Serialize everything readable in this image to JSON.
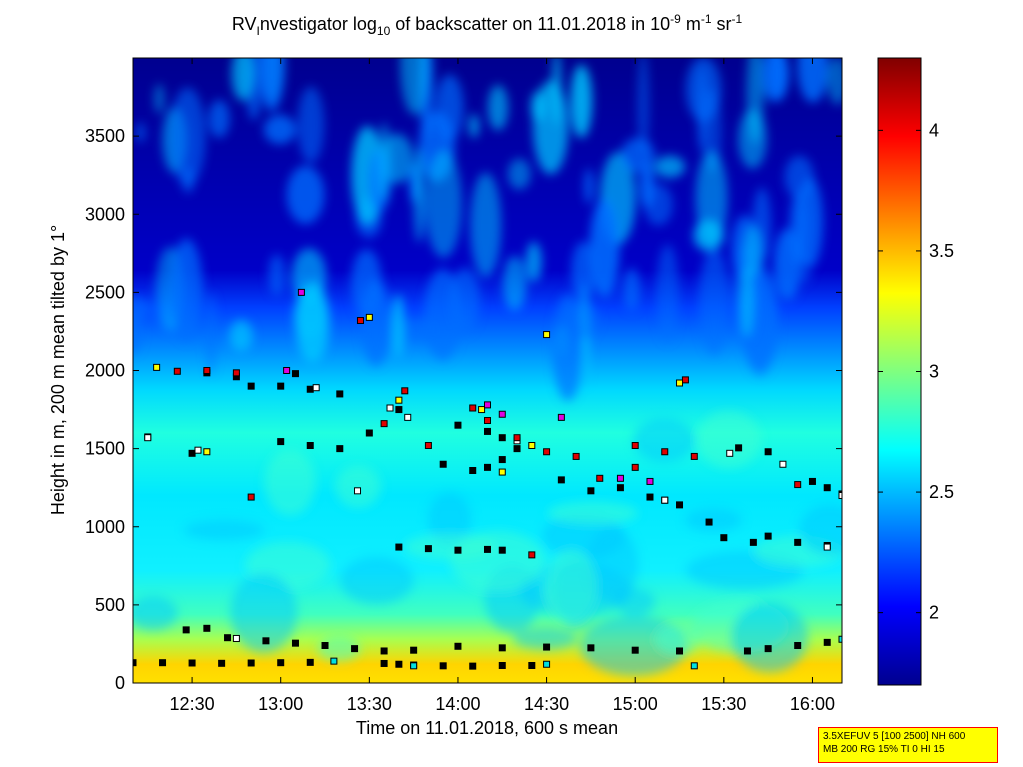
{
  "figure": {
    "title_parts": [
      "RV",
      "I",
      "nvestigator log",
      "10",
      " of backscatter on 11.01.2018 in 10",
      "-9",
      " m",
      "-1",
      " sr",
      "-1"
    ],
    "xlabel": "Time on 11.01.2018, 600 s mean",
    "ylabel": "Height in m, 200 m mean tilted by 1°",
    "info_lines": [
      "3.5XEFUV 5 [100 2500] NH 600",
      "MB 200 RG 15% TI 0 HI 15"
    ]
  },
  "colors": {
    "marker_edge": "#000000",
    "marker_black": "#000000",
    "marker_white": "#ffffff",
    "marker_red": "#e00000",
    "marker_yellow": "#ffff00",
    "marker_magenta": "#e000e0",
    "marker_cyan": "#00e0e0",
    "info_bg": "#ffff00",
    "info_border": "#ff0000"
  },
  "chart_data": {
    "type": "heatmap",
    "colormap": "jet",
    "xlim": [
      "12:10",
      "16:10"
    ],
    "ylim": [
      0,
      4000
    ],
    "clim": [
      1.7,
      4.3
    ],
    "x_ticks": [
      "12:30",
      "13:00",
      "13:30",
      "14:00",
      "14:30",
      "15:00",
      "15:30",
      "16:00"
    ],
    "y_ticks": [
      0,
      500,
      1000,
      1500,
      2000,
      2500,
      3000,
      3500
    ],
    "colorbar_ticks": [
      2,
      2.5,
      3,
      3.5,
      4
    ],
    "field_description_levels": {
      "surface_0_100m": 3.3,
      "near_surface_100_400m": 3.0,
      "boundary_layer_400_1500m": 2.7,
      "free_troposphere_above_2000m": 1.8
    },
    "series": [
      {
        "marker": "black",
        "points": [
          [
            "12:10",
            130
          ],
          [
            "12:20",
            130
          ],
          [
            "12:30",
            128
          ],
          [
            "12:40",
            126
          ],
          [
            "12:50",
            128
          ],
          [
            "13:00",
            130
          ],
          [
            "13:10",
            132
          ],
          [
            "13:35",
            125
          ],
          [
            "13:40",
            120
          ],
          [
            "13:45",
            115
          ],
          [
            "13:55",
            110
          ],
          [
            "14:05",
            108
          ],
          [
            "14:15",
            112
          ],
          [
            "14:25",
            112
          ],
          [
            "12:28",
            340
          ],
          [
            "12:35",
            350
          ],
          [
            "12:42",
            290
          ],
          [
            "12:55",
            270
          ],
          [
            "13:05",
            255
          ],
          [
            "13:15",
            240
          ],
          [
            "13:25",
            220
          ],
          [
            "13:35",
            205
          ],
          [
            "13:45",
            210
          ],
          [
            "14:00",
            235
          ],
          [
            "14:15",
            225
          ],
          [
            "14:30",
            230
          ],
          [
            "14:45",
            225
          ],
          [
            "15:00",
            210
          ],
          [
            "15:15",
            205
          ],
          [
            "15:38",
            205
          ],
          [
            "15:45",
            220
          ],
          [
            "15:55",
            240
          ],
          [
            "16:05",
            260
          ],
          [
            "13:40",
            870
          ],
          [
            "13:50",
            860
          ],
          [
            "14:00",
            850
          ],
          [
            "14:10",
            855
          ],
          [
            "14:15",
            850
          ],
          [
            "13:00",
            1545
          ],
          [
            "13:10",
            1520
          ],
          [
            "13:20",
            1500
          ],
          [
            "13:30",
            1600
          ],
          [
            "13:40",
            1750
          ],
          [
            "13:00",
            1900
          ],
          [
            "13:10",
            1880
          ],
          [
            "13:20",
            1850
          ],
          [
            "14:00",
            1650
          ],
          [
            "14:10",
            1610
          ],
          [
            "14:15",
            1570
          ],
          [
            "14:20",
            1500
          ],
          [
            "13:55",
            1400
          ],
          [
            "14:05",
            1360
          ],
          [
            "14:10",
            1380
          ],
          [
            "14:15",
            1430
          ],
          [
            "14:35",
            1300
          ],
          [
            "14:45",
            1230
          ],
          [
            "14:55",
            1250
          ],
          [
            "15:05",
            1190
          ],
          [
            "15:10",
            1170
          ],
          [
            "15:15",
            1140
          ],
          [
            "15:25",
            1030
          ],
          [
            "15:30",
            930
          ],
          [
            "15:40",
            900
          ],
          [
            "15:45",
            940
          ],
          [
            "15:55",
            900
          ],
          [
            "16:05",
            880
          ],
          [
            "15:35",
            1505
          ],
          [
            "15:45",
            1480
          ],
          [
            "16:00",
            1290
          ],
          [
            "16:05",
            1250
          ],
          [
            "16:10",
            1210
          ],
          [
            "12:30",
            1470
          ],
          [
            "12:15",
            1575
          ],
          [
            "12:35",
            1985
          ],
          [
            "12:45",
            1960
          ],
          [
            "12:50",
            1900
          ],
          [
            "13:05",
            1980
          ]
        ]
      },
      {
        "marker": "white",
        "points": [
          [
            "12:15",
            1570
          ],
          [
            "12:32",
            1490
          ],
          [
            "13:12",
            1890
          ],
          [
            "13:26",
            1230
          ],
          [
            "13:37",
            1760
          ],
          [
            "13:43",
            1700
          ],
          [
            "14:20",
            1550
          ],
          [
            "15:10",
            1170
          ],
          [
            "15:32",
            1470
          ],
          [
            "15:50",
            1400
          ],
          [
            "16:10",
            1200
          ],
          [
            "16:05",
            870
          ],
          [
            "12:45",
            285
          ]
        ]
      },
      {
        "marker": "red",
        "points": [
          [
            "12:25",
            1995
          ],
          [
            "12:35",
            2000
          ],
          [
            "12:45",
            1985
          ],
          [
            "12:50",
            1190
          ],
          [
            "13:27",
            2320
          ],
          [
            "13:35",
            1660
          ],
          [
            "13:42",
            1870
          ],
          [
            "13:50",
            1520
          ],
          [
            "14:05",
            1760
          ],
          [
            "14:10",
            1680
          ],
          [
            "14:20",
            1570
          ],
          [
            "14:25",
            820
          ],
          [
            "14:30",
            1480
          ],
          [
            "14:40",
            1450
          ],
          [
            "14:48",
            1310
          ],
          [
            "15:00",
            1380
          ],
          [
            "15:00",
            1520
          ],
          [
            "15:10",
            1480
          ],
          [
            "15:17",
            1940
          ],
          [
            "15:20",
            1450
          ],
          [
            "15:55",
            1270
          ]
        ]
      },
      {
        "marker": "yellow",
        "points": [
          [
            "12:18",
            2020
          ],
          [
            "12:35",
            1480
          ],
          [
            "13:30",
            2340
          ],
          [
            "13:40",
            1810
          ],
          [
            "14:08",
            1750
          ],
          [
            "14:15",
            1350
          ],
          [
            "14:25",
            1520
          ],
          [
            "14:30",
            2230
          ],
          [
            "15:15",
            1920
          ]
        ]
      },
      {
        "marker": "magenta",
        "points": [
          [
            "13:07",
            2500
          ],
          [
            "13:02",
            2000
          ],
          [
            "14:10",
            1780
          ],
          [
            "14:15",
            1720
          ],
          [
            "14:35",
            1700
          ],
          [
            "15:05",
            1290
          ],
          [
            "14:55",
            1310
          ]
        ]
      },
      {
        "marker": "cyan",
        "points": [
          [
            "13:18",
            140
          ],
          [
            "13:45",
            110
          ],
          [
            "14:30",
            120
          ],
          [
            "15:20",
            110
          ],
          [
            "16:10",
            280
          ]
        ]
      }
    ]
  }
}
